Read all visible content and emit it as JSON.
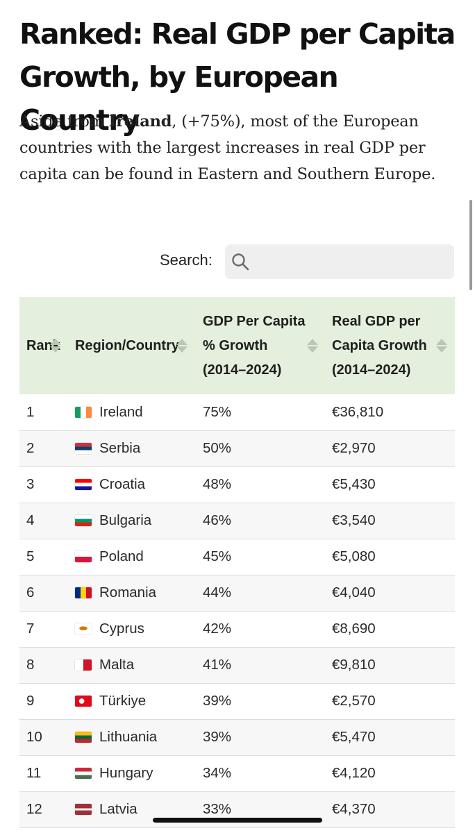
{
  "page": {
    "title": "Ranked: Real GDP per Capita Growth, by European Country",
    "intro": {
      "pre": "Aside from ",
      "bold": "Ireland",
      "post": ", (+75%), most of the European countries with the largest increases in real GDP per capita can be found in Eastern and Southern Europe."
    }
  },
  "search": {
    "label": "Search:",
    "value": ""
  },
  "table": {
    "headers": {
      "rank": "Rank",
      "country": "Region/Country",
      "growth": "GDP Per Capita % Growth (2014–2024)",
      "gdp": "Real GDP per Capita Growth (2014–2024)"
    },
    "rows": [
      {
        "rank": "1",
        "country": "Ireland",
        "growth": "75%",
        "gdp": "€36,810"
      },
      {
        "rank": "2",
        "country": "Serbia",
        "growth": "50%",
        "gdp": "€2,970"
      },
      {
        "rank": "3",
        "country": "Croatia",
        "growth": "48%",
        "gdp": "€5,430"
      },
      {
        "rank": "4",
        "country": "Bulgaria",
        "growth": "46%",
        "gdp": "€3,540"
      },
      {
        "rank": "5",
        "country": "Poland",
        "growth": "45%",
        "gdp": "€5,080"
      },
      {
        "rank": "6",
        "country": "Romania",
        "growth": "44%",
        "gdp": "€4,040"
      },
      {
        "rank": "7",
        "country": "Cyprus",
        "growth": "42%",
        "gdp": "€8,690"
      },
      {
        "rank": "8",
        "country": "Malta",
        "growth": "41%",
        "gdp": "€9,810"
      },
      {
        "rank": "9",
        "country": "Türkiye",
        "growth": "39%",
        "gdp": "€2,570"
      },
      {
        "rank": "10",
        "country": "Lithuania",
        "growth": "39%",
        "gdp": "€5,470"
      },
      {
        "rank": "11",
        "country": "Hungary",
        "growth": "34%",
        "gdp": "€4,120"
      },
      {
        "rank": "12",
        "country": "Latvia",
        "growth": "33%",
        "gdp": "€4,370"
      }
    ]
  },
  "colors": {
    "header_bg": "#e4efdd",
    "row_stripe": "#f7f7f7",
    "divider": "#dcdcdc",
    "search_bg": "#efefef"
  },
  "icons": {
    "search": "magnifier-icon",
    "sort": "sort-arrows-icon"
  }
}
